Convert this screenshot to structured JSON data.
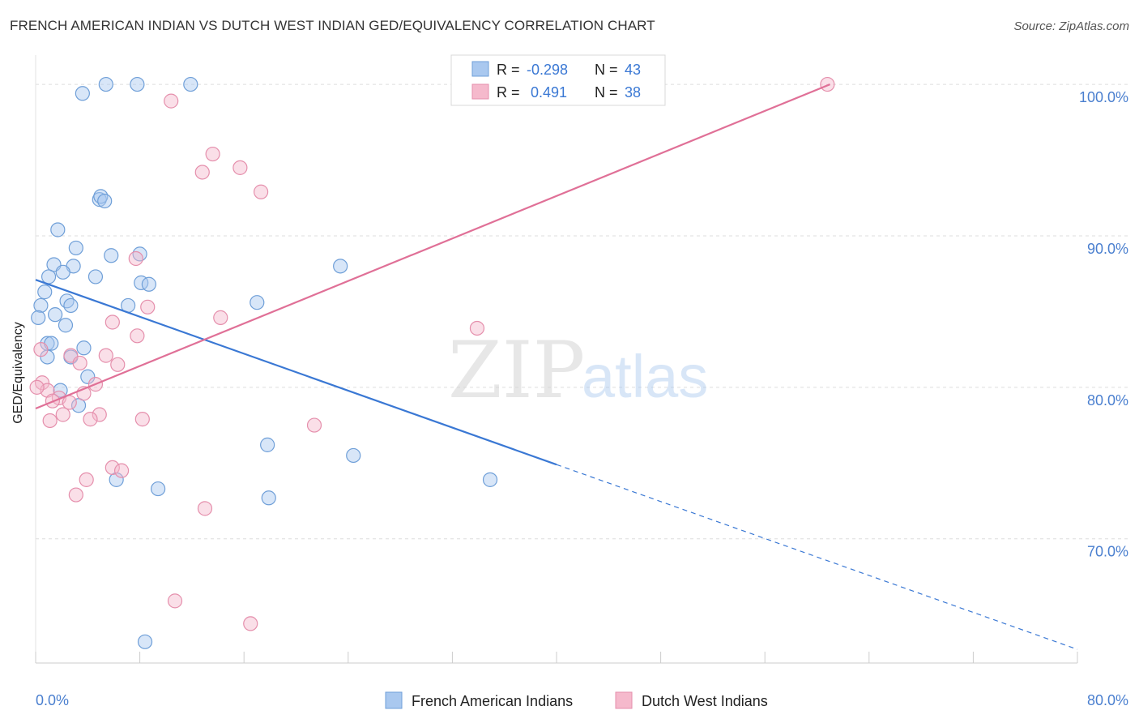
{
  "title": "FRENCH AMERICAN INDIAN VS DUTCH WEST INDIAN GED/EQUIVALENCY CORRELATION CHART",
  "source": "Source: ZipAtlas.com",
  "watermark": {
    "zip": "ZIP",
    "atlas": "atlas"
  },
  "legend_stats": [
    {
      "r_label": "R = ",
      "r_value": "-0.298",
      "n_label": "N = ",
      "n_value": "43"
    },
    {
      "r_label": "R = ",
      "r_value": " 0.491",
      "n_label": "N = ",
      "n_value": "38"
    }
  ],
  "colors": {
    "blue_fill": "#a9c8ef",
    "blue_stroke": "#6f9fd8",
    "blue_line": "#3a78d4",
    "pink_fill": "#f5b9cc",
    "pink_stroke": "#e58fac",
    "pink_line": "#e07097",
    "axis_text": "#4a7fcf",
    "grid": "#dddddd"
  },
  "chart_data": {
    "type": "scatter",
    "xlabel": "",
    "ylabel": "GED/Equivalency",
    "xlim": [
      0,
      80
    ],
    "ylim": [
      61.8,
      103
    ],
    "x_tick_labels": [
      {
        "value": 0,
        "label": "0.0%"
      },
      {
        "value": 80,
        "label": "80.0%"
      }
    ],
    "y_tick_labels": [
      {
        "value": 100,
        "label": "100.0%"
      },
      {
        "value": 90,
        "label": "90.0%"
      },
      {
        "value": 80,
        "label": "80.0%"
      },
      {
        "value": 70,
        "label": "70.0%"
      }
    ],
    "grid": true,
    "legend_position": "bottom",
    "series": [
      {
        "name": "French American Indians",
        "color": "#a9c8ef",
        "r": -0.298,
        "n": 43,
        "trend": {
          "x0": 0,
          "y0": 87.1,
          "x1": 40,
          "y1": 74.9,
          "dash_to_x": 80,
          "dash_to_y": 62.7
        },
        "points": [
          [
            3.6,
            99.4
          ],
          [
            5.4,
            100.0
          ],
          [
            7.8,
            100.0
          ],
          [
            11.9,
            100.0
          ],
          [
            4.9,
            92.4
          ],
          [
            5.0,
            92.6
          ],
          [
            5.3,
            92.3
          ],
          [
            1.7,
            90.4
          ],
          [
            3.1,
            89.2
          ],
          [
            5.8,
            88.7
          ],
          [
            8.0,
            88.8
          ],
          [
            1.4,
            88.1
          ],
          [
            2.9,
            88.0
          ],
          [
            1.0,
            87.3
          ],
          [
            2.1,
            87.6
          ],
          [
            4.6,
            87.3
          ],
          [
            8.1,
            86.9
          ],
          [
            8.7,
            86.8
          ],
          [
            0.7,
            86.3
          ],
          [
            2.4,
            85.7
          ],
          [
            2.7,
            85.4
          ],
          [
            0.4,
            85.4
          ],
          [
            7.1,
            85.4
          ],
          [
            17.0,
            85.6
          ],
          [
            23.4,
            88.0
          ],
          [
            1.5,
            84.8
          ],
          [
            2.3,
            84.1
          ],
          [
            0.9,
            82.9
          ],
          [
            1.2,
            82.9
          ],
          [
            3.7,
            82.6
          ],
          [
            2.7,
            82.0
          ],
          [
            0.9,
            82.0
          ],
          [
            4.0,
            80.7
          ],
          [
            1.9,
            79.8
          ],
          [
            3.3,
            78.8
          ],
          [
            17.8,
            76.2
          ],
          [
            24.4,
            75.5
          ],
          [
            6.2,
            73.9
          ],
          [
            9.4,
            73.3
          ],
          [
            17.9,
            72.7
          ],
          [
            34.9,
            73.9
          ],
          [
            8.4,
            63.2
          ],
          [
            0.2,
            84.6
          ]
        ]
      },
      {
        "name": "Dutch West Indians",
        "color": "#f5b9cc",
        "r": 0.491,
        "n": 38,
        "trend": {
          "x0": 0,
          "y0": 78.6,
          "x1": 61,
          "y1": 100.0
        },
        "points": [
          [
            60.8,
            100.0
          ],
          [
            10.4,
            98.9
          ],
          [
            13.6,
            95.4
          ],
          [
            12.8,
            94.2
          ],
          [
            15.7,
            94.5
          ],
          [
            17.3,
            92.9
          ],
          [
            7.7,
            88.5
          ],
          [
            8.6,
            85.3
          ],
          [
            14.2,
            84.6
          ],
          [
            5.9,
            84.3
          ],
          [
            33.9,
            83.9
          ],
          [
            7.8,
            83.4
          ],
          [
            0.4,
            82.5
          ],
          [
            5.4,
            82.1
          ],
          [
            2.7,
            82.1
          ],
          [
            3.4,
            81.6
          ],
          [
            6.3,
            81.5
          ],
          [
            0.5,
            80.3
          ],
          [
            4.6,
            80.2
          ],
          [
            0.9,
            79.8
          ],
          [
            3.7,
            79.6
          ],
          [
            1.8,
            79.3
          ],
          [
            2.6,
            79.0
          ],
          [
            1.3,
            79.1
          ],
          [
            4.9,
            78.2
          ],
          [
            2.1,
            78.2
          ],
          [
            8.2,
            77.9
          ],
          [
            4.2,
            77.9
          ],
          [
            1.1,
            77.8
          ],
          [
            21.4,
            77.5
          ],
          [
            5.9,
            74.7
          ],
          [
            6.6,
            74.5
          ],
          [
            3.9,
            73.9
          ],
          [
            3.1,
            72.9
          ],
          [
            13.0,
            72.0
          ],
          [
            10.7,
            65.9
          ],
          [
            16.5,
            64.4
          ],
          [
            0.1,
            80.0
          ]
        ]
      }
    ]
  }
}
